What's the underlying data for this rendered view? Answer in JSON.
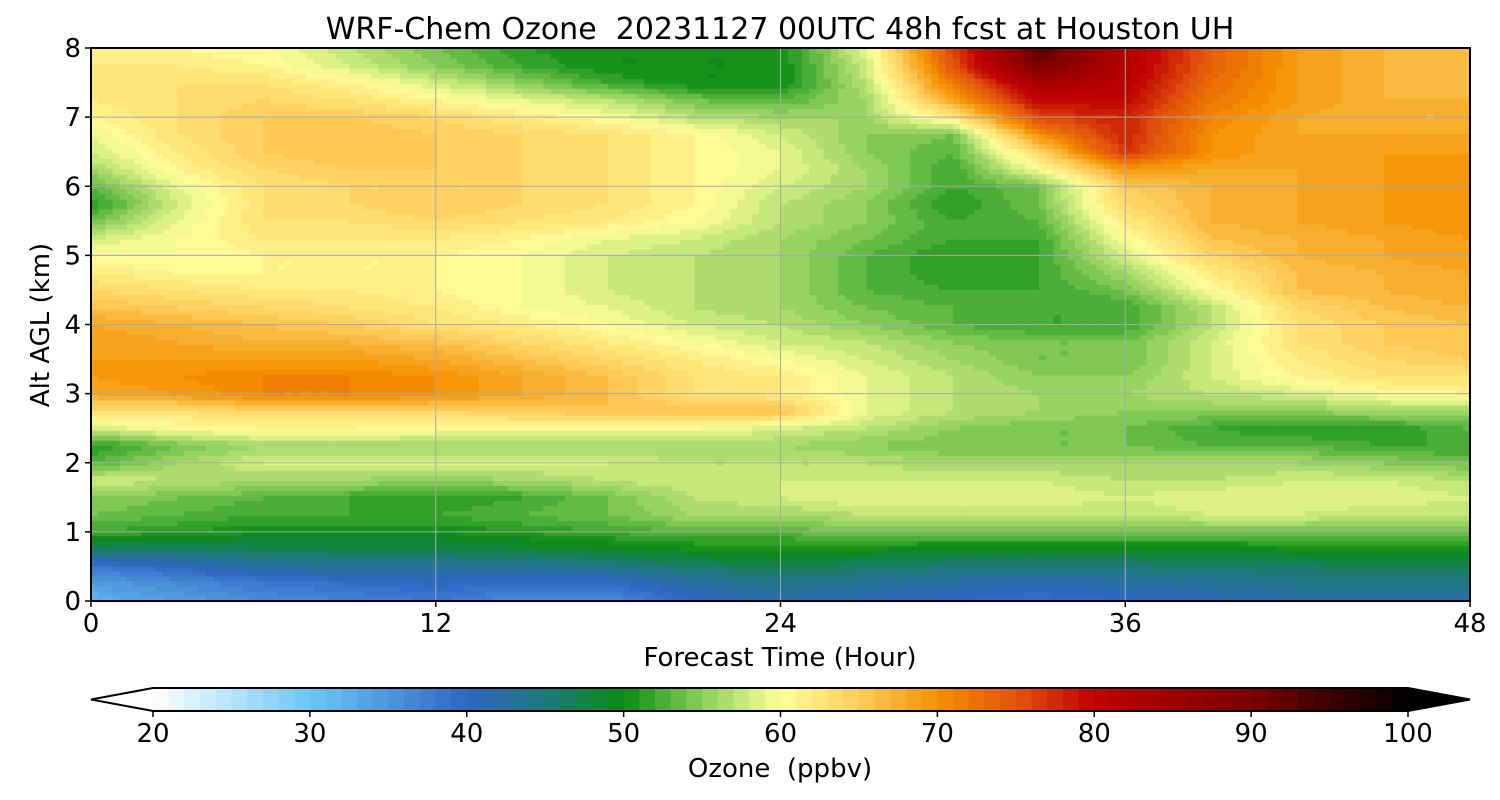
{
  "chart_data": {
    "type": "heatmap",
    "title": "WRF-Chem Ozone  20231127 00UTC 48h fcst at Houston UH",
    "xlabel": "Forecast Time (Hour)",
    "ylabel": "Alt AGL (km)",
    "xlim": [
      0,
      48
    ],
    "ylim": [
      0,
      8
    ],
    "x_ticks": [
      0,
      12,
      24,
      36,
      48
    ],
    "y_ticks": [
      0,
      1,
      2,
      3,
      4,
      5,
      6,
      7,
      8
    ],
    "grid": true,
    "x": [
      0,
      3,
      6,
      9,
      12,
      15,
      18,
      21,
      24,
      27,
      30,
      33,
      36,
      39,
      42,
      45,
      48
    ],
    "y": [
      0,
      0.25,
      0.5,
      0.75,
      1,
      1.25,
      1.5,
      1.75,
      2,
      2.25,
      2.5,
      2.75,
      3,
      3.25,
      3.5,
      3.75,
      4,
      4.25,
      4.5,
      4.75,
      5,
      5.25,
      5.5,
      5.75,
      6,
      6.25,
      6.5,
      6.75,
      7,
      7.25,
      7.5,
      7.75,
      8
    ],
    "z": [
      [
        32,
        34,
        36,
        37,
        38,
        36,
        36,
        40,
        42,
        41,
        40,
        39,
        40,
        41,
        42,
        42,
        42
      ],
      [
        34,
        36,
        38,
        39,
        40,
        39,
        39,
        42,
        44,
        43,
        42,
        41,
        42,
        43,
        44,
        44,
        44
      ],
      [
        38,
        40,
        42,
        43,
        43,
        43,
        44,
        46,
        47,
        46,
        45,
        45,
        45,
        46,
        46,
        47,
        47
      ],
      [
        46,
        46,
        47,
        47,
        47,
        48,
        49,
        50,
        50,
        50,
        49,
        49,
        49,
        49,
        50,
        50,
        50
      ],
      [
        52,
        51,
        50,
        50,
        50,
        51,
        52,
        53,
        53,
        54,
        54,
        54,
        54,
        54,
        54,
        54,
        54
      ],
      [
        54,
        53,
        52,
        52,
        52,
        53,
        54,
        56,
        56,
        57,
        57,
        57,
        57,
        58,
        58,
        57,
        57
      ],
      [
        55,
        54,
        53,
        52,
        51,
        52,
        54,
        57,
        58,
        59,
        59,
        59,
        58,
        59,
        59,
        59,
        58
      ],
      [
        58,
        57,
        56,
        56,
        55,
        56,
        57,
        58,
        58,
        58,
        58,
        58,
        57,
        57,
        58,
        58,
        57
      ],
      [
        53,
        56,
        58,
        58,
        58,
        58,
        58,
        57,
        57,
        57,
        56,
        56,
        56,
        56,
        56,
        55,
        54
      ],
      [
        51,
        54,
        56,
        56,
        56,
        56,
        56,
        56,
        56,
        55,
        54,
        54,
        54,
        53,
        53,
        52,
        52
      ],
      [
        58,
        60,
        61,
        61,
        60,
        60,
        60,
        60,
        58,
        57,
        55,
        54,
        54,
        52,
        51,
        51,
        53
      ],
      [
        63,
        63,
        64,
        64,
        64,
        65,
        66,
        66,
        66,
        59,
        57,
        56,
        55,
        55,
        55,
        56,
        56
      ],
      [
        68,
        69,
        71,
        71,
        70,
        68,
        66,
        63,
        62,
        59,
        57,
        56,
        56,
        57,
        58,
        60,
        61
      ],
      [
        69,
        70,
        71,
        71,
        70,
        68,
        66,
        63,
        62,
        59,
        57,
        55,
        55,
        58,
        61,
        63,
        63
      ],
      [
        69,
        69,
        69,
        69,
        68,
        66,
        64,
        62,
        60,
        58,
        56,
        54,
        54,
        58,
        62,
        64,
        65
      ],
      [
        69,
        68,
        67,
        67,
        66,
        64,
        62,
        60,
        58,
        57,
        55,
        54,
        54,
        58,
        63,
        65,
        66
      ],
      [
        68,
        67,
        66,
        65,
        63,
        62,
        60,
        58,
        57,
        55,
        53,
        52,
        52,
        57,
        63,
        65,
        66
      ],
      [
        66,
        65,
        64,
        63,
        62,
        60,
        59,
        57,
        56,
        54,
        53,
        52,
        52,
        57,
        64,
        66,
        67
      ],
      [
        64,
        63,
        62,
        62,
        61,
        60,
        58,
        57,
        56,
        53,
        52,
        52,
        54,
        60,
        66,
        67,
        68
      ],
      [
        62,
        61,
        61,
        61,
        61,
        60,
        58,
        57,
        56,
        53,
        51,
        52,
        56,
        62,
        66,
        67,
        68
      ],
      [
        60,
        60,
        61,
        61,
        61,
        60,
        58,
        57,
        56,
        53,
        51,
        52,
        58,
        64,
        67,
        68,
        69
      ],
      [
        58,
        60,
        62,
        62,
        62,
        61,
        59,
        58,
        56,
        54,
        52,
        52,
        60,
        66,
        67,
        68,
        69
      ],
      [
        54,
        59,
        63,
        63,
        64,
        63,
        62,
        60,
        57,
        55,
        52,
        53,
        62,
        67,
        68,
        69,
        70
      ],
      [
        51,
        58,
        63,
        64,
        65,
        64,
        63,
        61,
        57,
        55,
        51,
        54,
        64,
        67,
        68,
        69,
        70
      ],
      [
        53,
        59,
        63,
        64,
        64,
        64,
        63,
        61,
        58,
        56,
        52,
        54,
        65,
        67,
        68,
        69,
        70
      ],
      [
        56,
        61,
        64,
        65,
        65,
        64,
        63,
        61,
        59,
        56,
        52,
        60,
        69,
        68,
        68,
        69,
        70
      ],
      [
        58,
        62,
        65,
        66,
        65,
        64,
        63,
        61,
        59,
        55,
        53,
        64,
        77,
        70,
        68,
        69,
        69
      ],
      [
        59,
        63,
        65,
        66,
        65,
        64,
        63,
        61,
        58,
        55,
        54,
        70,
        78,
        70,
        68,
        68,
        68
      ],
      [
        61,
        63,
        65,
        65,
        64,
        62,
        60,
        57,
        56,
        56,
        62,
        76,
        78,
        71,
        68,
        67,
        67
      ],
      [
        62,
        63,
        64,
        63,
        61,
        59,
        57,
        54,
        53,
        56,
        68,
        80,
        80,
        72,
        69,
        67,
        67
      ],
      [
        62,
        63,
        63,
        61,
        58,
        55,
        52,
        50,
        50,
        57,
        72,
        84,
        81,
        73,
        69,
        67,
        66
      ],
      [
        62,
        62,
        61,
        58,
        55,
        52,
        50,
        50,
        50,
        58,
        75,
        90,
        82,
        74,
        69,
        67,
        66
      ],
      [
        61,
        61,
        60,
        57,
        54,
        51,
        50,
        50,
        50,
        59,
        76,
        93,
        82,
        74,
        69,
        67,
        66
      ]
    ],
    "colorbar": {
      "label": "Ozone  (ppbv)",
      "min": 20,
      "max": 100,
      "step": 1,
      "ticks": [
        20,
        30,
        40,
        50,
        60,
        70,
        80,
        90,
        100
      ],
      "extend": "both",
      "colormap_stops": [
        {
          "v": 20,
          "c": "#ffffff"
        },
        {
          "v": 30,
          "c": "#6cc6f6"
        },
        {
          "v": 40,
          "c": "#2f66c2"
        },
        {
          "v": 45,
          "c": "#1e7a7e"
        },
        {
          "v": 50,
          "c": "#0a8c14"
        },
        {
          "v": 55,
          "c": "#8ccf5a"
        },
        {
          "v": 60,
          "c": "#ffff99"
        },
        {
          "v": 65,
          "c": "#fdcd5c"
        },
        {
          "v": 70,
          "c": "#f59000"
        },
        {
          "v": 75,
          "c": "#e2540c"
        },
        {
          "v": 80,
          "c": "#c00000"
        },
        {
          "v": 90,
          "c": "#7a0000"
        },
        {
          "v": 100,
          "c": "#000000"
        }
      ]
    }
  }
}
